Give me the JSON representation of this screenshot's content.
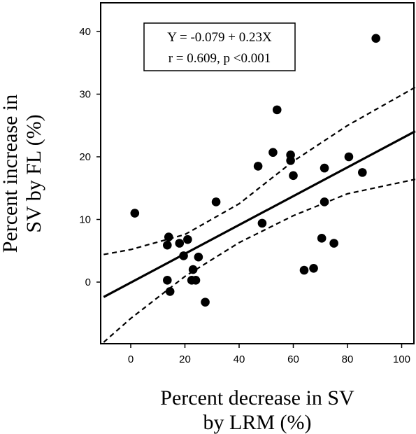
{
  "chart_data": {
    "type": "scatter",
    "xlabel": [
      "Percent decrease in SV",
      "by LRM (%)"
    ],
    "ylabel": [
      "Percent increase in",
      "SV by FL  (%)"
    ],
    "xlim": [
      -10,
      105
    ],
    "ylim": [
      -10,
      45
    ],
    "xticks": [
      "0",
      "20",
      "40",
      "60",
      "80",
      "100"
    ],
    "yticks": [
      "0",
      "10",
      "20",
      "30",
      "40"
    ],
    "annotation": [
      "Y = -0.079 + 0.23X",
      "r = 0.609, p <0.001"
    ],
    "regression": {
      "intercept": -0.079,
      "slope": 0.23
    },
    "ci_lower": [
      [
        -10,
        -9.6
      ],
      [
        0,
        -5.8
      ],
      [
        20,
        0.9
      ],
      [
        40,
        6.3
      ],
      [
        60,
        10.6
      ],
      [
        80,
        14.1
      ],
      [
        105,
        16.4
      ]
    ],
    "ci_upper": [
      [
        -10,
        4.4
      ],
      [
        0,
        5.2
      ],
      [
        20,
        7.6
      ],
      [
        40,
        12.5
      ],
      [
        60,
        19.3
      ],
      [
        80,
        25.0
      ],
      [
        105,
        31.1
      ]
    ],
    "points": [
      [
        1.5,
        11.0
      ],
      [
        13.5,
        5.9
      ],
      [
        14.0,
        7.2
      ],
      [
        13.5,
        0.3
      ],
      [
        14.5,
        -1.5
      ],
      [
        18.0,
        6.2
      ],
      [
        19.5,
        4.2
      ],
      [
        21.0,
        6.8
      ],
      [
        22.5,
        0.3
      ],
      [
        23.0,
        2.0
      ],
      [
        24.0,
        0.3
      ],
      [
        25.0,
        4.0
      ],
      [
        27.5,
        -3.2
      ],
      [
        31.5,
        12.8
      ],
      [
        47.0,
        18.5
      ],
      [
        48.5,
        9.4
      ],
      [
        52.5,
        20.7
      ],
      [
        54.0,
        27.5
      ],
      [
        59.0,
        20.3
      ],
      [
        59.0,
        19.4
      ],
      [
        60.0,
        17.0
      ],
      [
        64.0,
        1.9
      ],
      [
        67.5,
        2.2
      ],
      [
        70.5,
        7.0
      ],
      [
        71.5,
        18.2
      ],
      [
        71.5,
        12.8
      ],
      [
        75.0,
        6.2
      ],
      [
        80.5,
        20.0
      ],
      [
        85.5,
        17.5
      ],
      [
        90.5,
        38.9
      ]
    ]
  }
}
